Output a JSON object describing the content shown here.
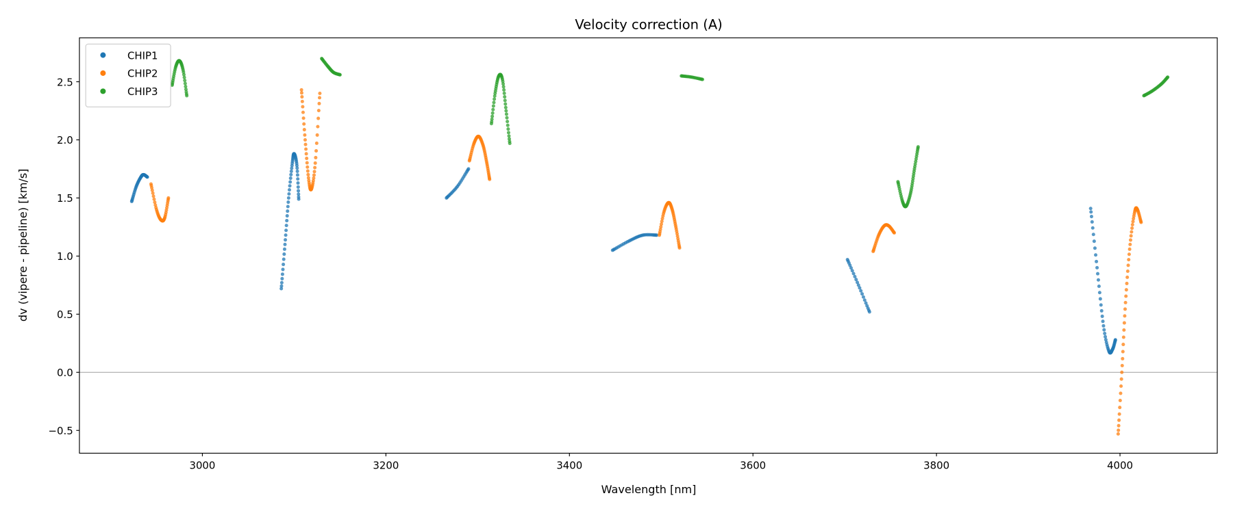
{
  "chart_data": {
    "type": "scatter",
    "title": "Velocity correction (A)",
    "xlabel": "Wavelength [nm]",
    "ylabel": "dv (vipere - pipeline) [km/s]",
    "xlim": [
      2866,
      4106
    ],
    "ylim": [
      -0.696,
      2.878
    ],
    "xticks": [
      3000,
      3200,
      3400,
      3600,
      3800,
      4000
    ],
    "xtick_labels": [
      "3000",
      "3200",
      "3400",
      "3600",
      "3800",
      "4000"
    ],
    "yticks": [
      -0.5,
      0.0,
      0.5,
      1.0,
      1.5,
      2.0,
      2.5
    ],
    "ytick_labels": [
      "−0.5",
      "0.0",
      "0.5",
      "1.0",
      "1.5",
      "2.0",
      "2.5"
    ],
    "hline": 0.0,
    "grid": false,
    "legend_position": "top-left",
    "series": [
      {
        "name": "CHIP1",
        "color": "#1f77b4",
        "segments": [
          [
            [
              2923,
              1.47
            ],
            [
              2928,
              1.6
            ],
            [
              2933,
              1.68
            ],
            [
              2936,
              1.7
            ],
            [
              2940,
              1.68
            ]
          ],
          [
            [
              3086,
              0.72
            ],
            [
              3090,
              1.1
            ],
            [
              3094,
              1.5
            ],
            [
              3098,
              1.8
            ],
            [
              3100,
              1.88
            ],
            [
              3103,
              1.78
            ],
            [
              3105,
              1.49
            ]
          ],
          [
            [
              3266,
              1.5
            ],
            [
              3278,
              1.6
            ],
            [
              3290,
              1.75
            ]
          ],
          [
            [
              3447,
              1.05
            ],
            [
              3465,
              1.13
            ],
            [
              3480,
              1.18
            ],
            [
              3495,
              1.18
            ]
          ],
          [
            [
              3703,
              0.97
            ],
            [
              3715,
              0.75
            ],
            [
              3727,
              0.52
            ]
          ],
          [
            [
              3968,
              1.41
            ],
            [
              3975,
              0.9
            ],
            [
              3982,
              0.4
            ],
            [
              3988,
              0.18
            ],
            [
              3992,
              0.2
            ],
            [
              3995,
              0.28
            ]
          ]
        ]
      },
      {
        "name": "CHIP2",
        "color": "#ff7f0e",
        "segments": [
          [
            [
              2944,
              1.62
            ],
            [
              2950,
              1.4
            ],
            [
              2955,
              1.31
            ],
            [
              2959,
              1.33
            ],
            [
              2963,
              1.5
            ]
          ],
          [
            [
              3108,
              2.43
            ],
            [
              3112,
              2.0
            ],
            [
              3116,
              1.65
            ],
            [
              3119,
              1.58
            ],
            [
              3123,
              1.8
            ],
            [
              3128,
              2.4
            ]
          ],
          [
            [
              3291,
              1.82
            ],
            [
              3296,
              1.97
            ],
            [
              3301,
              2.03
            ],
            [
              3306,
              1.95
            ],
            [
              3310,
              1.8
            ],
            [
              3313,
              1.66
            ]
          ],
          [
            [
              3498,
              1.18
            ],
            [
              3503,
              1.38
            ],
            [
              3508,
              1.46
            ],
            [
              3512,
              1.4
            ],
            [
              3516,
              1.25
            ],
            [
              3520,
              1.07
            ]
          ],
          [
            [
              3731,
              1.04
            ],
            [
              3737,
              1.18
            ],
            [
              3743,
              1.26
            ],
            [
              3748,
              1.26
            ],
            [
              3754,
              1.2
            ]
          ],
          [
            [
              3998,
              -0.53
            ],
            [
              4002,
              0.0
            ],
            [
              4006,
              0.6
            ],
            [
              4011,
              1.1
            ],
            [
              4016,
              1.38
            ],
            [
              4019,
              1.4
            ],
            [
              4023,
              1.29
            ]
          ]
        ]
      },
      {
        "name": "CHIP3",
        "color": "#2ca02c",
        "segments": [
          [
            [
              2967,
              2.47
            ],
            [
              2971,
              2.63
            ],
            [
              2975,
              2.68
            ],
            [
              2979,
              2.6
            ],
            [
              2983,
              2.38
            ]
          ],
          [
            [
              3130,
              2.7
            ],
            [
              3137,
              2.63
            ],
            [
              3143,
              2.58
            ],
            [
              3150,
              2.56
            ]
          ],
          [
            [
              3315,
              2.14
            ],
            [
              3319,
              2.4
            ],
            [
              3323,
              2.55
            ],
            [
              3327,
              2.52
            ],
            [
              3331,
              2.25
            ],
            [
              3335,
              1.97
            ]
          ],
          [
            [
              3522,
              2.55
            ],
            [
              3533,
              2.54
            ],
            [
              3545,
              2.52
            ]
          ],
          [
            [
              3758,
              1.64
            ],
            [
              3763,
              1.47
            ],
            [
              3767,
              1.43
            ],
            [
              3772,
              1.55
            ],
            [
              3776,
              1.75
            ],
            [
              3780,
              1.94
            ]
          ],
          [
            [
              4026,
              2.38
            ],
            [
              4035,
              2.42
            ],
            [
              4045,
              2.48
            ],
            [
              4052,
              2.54
            ]
          ]
        ]
      }
    ]
  }
}
